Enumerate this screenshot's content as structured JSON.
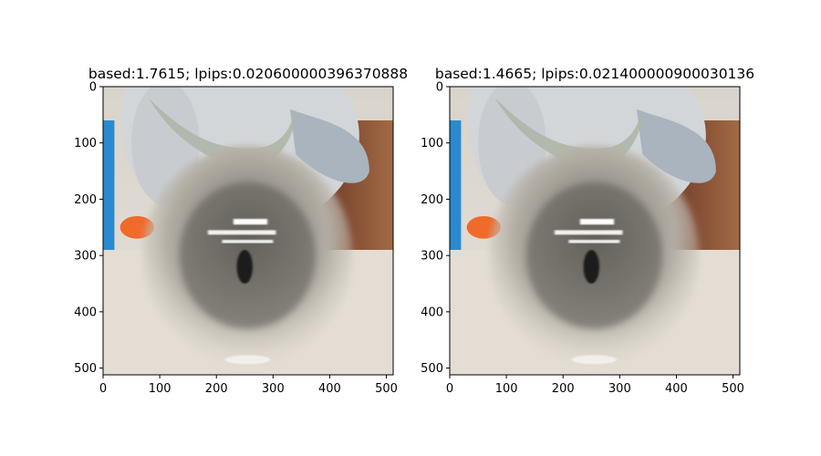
{
  "chart_data": [
    {
      "type": "image",
      "title": "based:1.7615; lpips:0.020600000396370888",
      "xlim": [
        0,
        512
      ],
      "ylim": [
        512,
        0
      ],
      "xticks": [
        0,
        100,
        200,
        300,
        400,
        500
      ],
      "yticks": [
        0,
        100,
        200,
        300,
        400,
        500
      ],
      "xlabel": "",
      "ylabel": ""
    },
    {
      "type": "image",
      "title": "based:1.4665; lpips:0.021400000900030136",
      "xlim": [
        0,
        512
      ],
      "ylim": [
        512,
        0
      ],
      "xticks": [
        0,
        100,
        200,
        300,
        400,
        500
      ],
      "yticks": [
        0,
        100,
        200,
        300,
        400,
        500
      ],
      "xlabel": "",
      "ylabel": ""
    }
  ],
  "colors": {
    "axis": "#000000",
    "wall": "#ded9d1",
    "toy": "#d3d6d8",
    "toy_shadow": "#a9b0b6",
    "glitter": "#aeb6a8",
    "background_red": "#8a4a32",
    "blue_edge": "#2a8ad0",
    "orange_toy": "#f06a2a",
    "sphere_dark": "#3c3a36",
    "sphere_mid": "#8e8a82",
    "floor": "#e3ddd3"
  }
}
